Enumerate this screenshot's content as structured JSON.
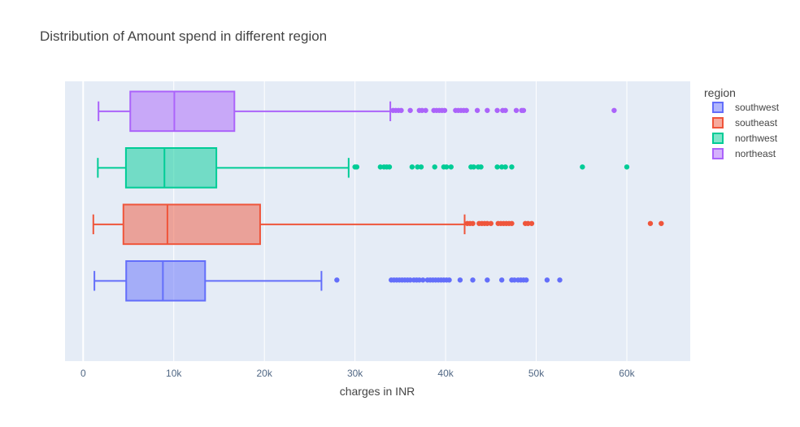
{
  "chart_data": {
    "type": "box",
    "orientation": "horizontal",
    "title": "Distribution of Amount spend in different region",
    "xlabel": "charges in INR",
    "ylabel": "",
    "xlim": [
      -2000,
      67000
    ],
    "x_ticks": [
      0,
      10000,
      20000,
      30000,
      40000,
      50000,
      60000
    ],
    "x_tick_labels": [
      "0",
      "10k",
      "20k",
      "30k",
      "40k",
      "50k",
      "60k"
    ],
    "grid": true,
    "plot_background": "#E5ECF6",
    "legend": {
      "title": "region",
      "placement": "right"
    },
    "series": [
      {
        "name": "southwest",
        "color": "#636EFA",
        "min": 1241,
        "q1": 4750,
        "median": 8800,
        "q3": 13460,
        "max": 26300,
        "outliers": [
          28000,
          34000,
          34300,
          34600,
          34900,
          35200,
          35500,
          35800,
          36100,
          36500,
          36800,
          37100,
          37500,
          38000,
          38300,
          38600,
          38900,
          39200,
          39500,
          39800,
          40100,
          40400,
          41600,
          43000,
          44600,
          46200,
          47300,
          47600,
          48000,
          48300,
          48600,
          48900,
          51200,
          52600
        ]
      },
      {
        "name": "southeast",
        "color": "#EF553B",
        "min": 1122,
        "q1": 4440,
        "median": 9300,
        "q3": 19530,
        "max": 42100,
        "outliers": [
          42400,
          42700,
          43000,
          43700,
          44000,
          44300,
          44600,
          45000,
          45800,
          46100,
          46400,
          46700,
          47000,
          47300,
          48800,
          49100,
          49500,
          62600,
          63800
        ]
      },
      {
        "name": "northwest",
        "color": "#00CC96",
        "min": 1621,
        "q1": 4720,
        "median": 8970,
        "q3": 14700,
        "max": 29300,
        "outliers": [
          30000,
          30200,
          32800,
          33200,
          33500,
          33800,
          36300,
          36900,
          37300,
          38800,
          39800,
          40100,
          40600,
          42800,
          43100,
          43600,
          43900,
          45700,
          46200,
          46600,
          47300,
          55100,
          60000
        ]
      },
      {
        "name": "northeast",
        "color": "#AB63FA",
        "min": 1695,
        "q1": 5200,
        "median": 10060,
        "q3": 16690,
        "max": 33900,
        "outliers": [
          34200,
          34500,
          34800,
          35100,
          36100,
          37100,
          37400,
          37800,
          38700,
          39000,
          39300,
          39600,
          39900,
          41100,
          41400,
          41700,
          42000,
          42300,
          43500,
          44600,
          45700,
          46300,
          46600,
          47800,
          48400,
          48600,
          58600
        ]
      }
    ]
  }
}
